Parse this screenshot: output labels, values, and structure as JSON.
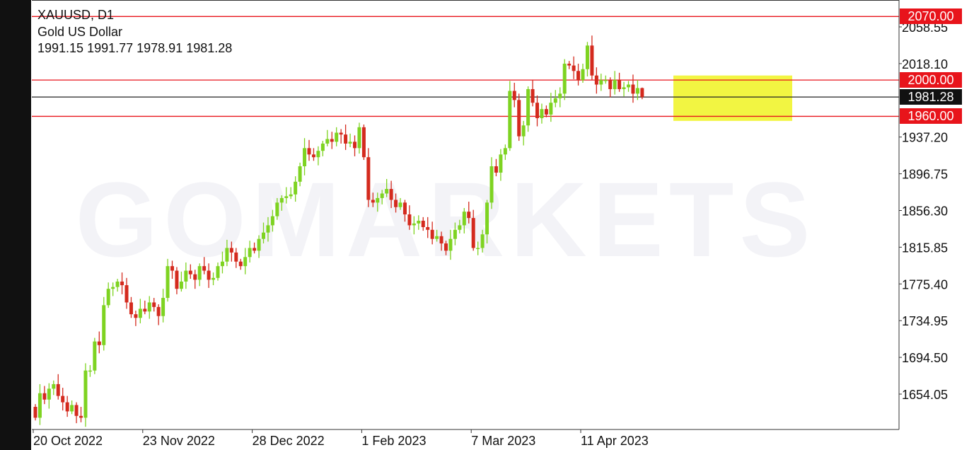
{
  "header": {
    "symbol": "XAUUSD, D1",
    "description": "Gold US Dollar",
    "ohlc": "1991.15 1991.77 1978.91 1981.28"
  },
  "watermark": "GOMARKETS",
  "levels": [
    {
      "price": 2070.0,
      "label": "2070.00",
      "color": "#e8141b"
    },
    {
      "price": 2000.0,
      "label": "2000.00",
      "color": "#e8141b"
    },
    {
      "price": 1960.0,
      "label": "1960.00",
      "color": "#e8141b"
    }
  ],
  "current_price": {
    "price": 1981.28,
    "label": "1981.28",
    "color": "#111111"
  },
  "highlight_zone": {
    "from_price": 1955,
    "to_price": 2005,
    "color": "#f2f542"
  },
  "colors": {
    "bull": "#7ed321",
    "bear": "#d42a1e",
    "level": "#e8141b"
  },
  "chart_data": {
    "type": "candlestick",
    "ylim": [
      1620,
      2075
    ],
    "y_ticks": [
      "2058.55",
      "2018.10",
      "1937.20",
      "1896.75",
      "1856.30",
      "1815.85",
      "1775.40",
      "1734.95",
      "1694.50",
      "1654.05"
    ],
    "x_ticks": [
      {
        "label": "20 Oct 2022",
        "index": 0
      },
      {
        "label": "23 Nov 2022",
        "index": 24
      },
      {
        "label": "28 Dec 2022",
        "index": 48
      },
      {
        "label": "1 Feb 2023",
        "index": 72
      },
      {
        "label": "7 Mar 2023",
        "index": 96
      },
      {
        "label": "11 Apr 2023",
        "index": 120
      }
    ],
    "first_open": 1640,
    "closes": [
      1628,
      1655,
      1648,
      1660,
      1665,
      1652,
      1645,
      1635,
      1642,
      1630,
      1628,
      1680,
      1680,
      1712,
      1708,
      1752,
      1770,
      1772,
      1778,
      1774,
      1755,
      1742,
      1738,
      1748,
      1745,
      1755,
      1750,
      1740,
      1760,
      1795,
      1790,
      1770,
      1778,
      1790,
      1786,
      1780,
      1795,
      1790,
      1780,
      1782,
      1795,
      1800,
      1815,
      1810,
      1800,
      1795,
      1805,
      1815,
      1812,
      1825,
      1832,
      1840,
      1850,
      1865,
      1870,
      1872,
      1874,
      1888,
      1905,
      1925,
      1918,
      1915,
      1922,
      1930,
      1935,
      1932,
      1942,
      1940,
      1930,
      1932,
      1925,
      1948,
      1915,
      1868,
      1865,
      1870,
      1875,
      1880,
      1868,
      1860,
      1865,
      1852,
      1840,
      1842,
      1845,
      1838,
      1835,
      1825,
      1828,
      1820,
      1812,
      1825,
      1835,
      1840,
      1855,
      1848,
      1815,
      1815,
      1830,
      1865,
      1905,
      1898,
      1918,
      1925,
      1988,
      1978,
      1938,
      1950,
      1990,
      1975,
      1958,
      1968,
      1962,
      1975,
      1980,
      1985,
      2018,
      2016,
      2010,
      2000,
      2012,
      2038,
      2005,
      1995,
      2000,
      2000,
      1990,
      2000,
      1990,
      1992,
      1995,
      1985,
      1991.15,
      1981.28
    ],
    "last_candle": {
      "open": 1991.15,
      "high": 1991.77,
      "low": 1978.91,
      "close": 1981.28
    }
  }
}
